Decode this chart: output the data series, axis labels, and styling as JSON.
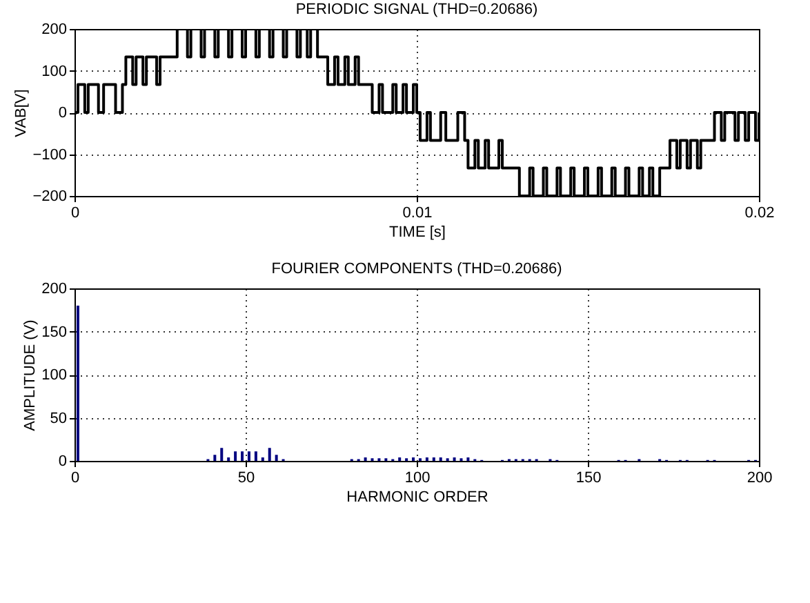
{
  "chart_data": [
    {
      "type": "step",
      "title": "PERIODIC SIGNAL (THD=0.20686)",
      "xlabel": "TIME [s]",
      "ylabel": "VAB[V]",
      "xlim": [
        0,
        0.02
      ],
      "xticks": [
        0,
        0.01,
        0.02
      ],
      "ylim": [
        -200,
        200
      ],
      "yticks": [
        -200,
        -100,
        0,
        100,
        200
      ],
      "grid": true,
      "color": "#000000",
      "x": [
        0,
        0.0001,
        0.0003,
        0.0004,
        0.0007,
        0.00085,
        0.0012,
        0.0014,
        0.0015,
        0.0017,
        0.0018,
        0.002,
        0.0021,
        0.0024,
        0.0025,
        0.003,
        0.0033,
        0.0034,
        0.0037,
        0.0038,
        0.0041,
        0.0042,
        0.0045,
        0.0046,
        0.0049,
        0.005,
        0.0053,
        0.0054,
        0.0057,
        0.0058,
        0.0061,
        0.0062,
        0.0065,
        0.0066,
        0.0068,
        0.0069,
        0.0071,
        0.0074,
        0.0076,
        0.0077,
        0.0079,
        0.008,
        0.0082,
        0.0083,
        0.0087,
        0.0089,
        0.009,
        0.0093,
        0.0094,
        0.0096,
        0.0097,
        0.0099,
        0.01,
        0.0101,
        0.0103,
        0.0104,
        0.0107,
        0.01085,
        0.0112,
        0.0114,
        0.0115,
        0.0117,
        0.0118,
        0.012,
        0.0121,
        0.0124,
        0.0125,
        0.013,
        0.0133,
        0.0134,
        0.0137,
        0.0138,
        0.0141,
        0.0142,
        0.0145,
        0.0146,
        0.0149,
        0.015,
        0.0153,
        0.0154,
        0.0157,
        0.0158,
        0.0161,
        0.0162,
        0.0165,
        0.0166,
        0.0168,
        0.0169,
        0.0171,
        0.0174,
        0.0176,
        0.0177,
        0.0179,
        0.018,
        0.0182,
        0.0183,
        0.0187,
        0.0189,
        0.019,
        0.0193,
        0.0194,
        0.0196,
        0.0197,
        0.0199,
        0.02
      ],
      "values": [
        0,
        67,
        0,
        67,
        0,
        67,
        0,
        67,
        133,
        67,
        133,
        67,
        133,
        67,
        133,
        200,
        133,
        200,
        133,
        200,
        133,
        200,
        133,
        200,
        133,
        200,
        133,
        200,
        133,
        200,
        133,
        200,
        133,
        200,
        133,
        200,
        133,
        67,
        133,
        67,
        133,
        67,
        133,
        67,
        0,
        67,
        0,
        67,
        0,
        67,
        0,
        67,
        0,
        -67,
        0,
        -67,
        0,
        -67,
        0,
        -67,
        -133,
        -67,
        -133,
        -67,
        -133,
        -67,
        -133,
        -200,
        -133,
        -200,
        -133,
        -200,
        -133,
        -200,
        -133,
        -200,
        -133,
        -200,
        -133,
        -200,
        -133,
        -200,
        -133,
        -200,
        -133,
        -200,
        -133,
        -200,
        -133,
        -67,
        -133,
        -67,
        -133,
        -67,
        -133,
        -67,
        0,
        -67,
        0,
        -67,
        0,
        -67,
        0,
        -67,
        0
      ]
    },
    {
      "type": "bar",
      "title": "FOURIER COMPONENTS  (THD=0.20686)",
      "xlabel": "HARMONIC ORDER",
      "ylabel": "AMPLITUDE (V)",
      "xlim": [
        0,
        200
      ],
      "xticks": [
        0,
        50,
        100,
        150,
        200
      ],
      "ylim": [
        0,
        200
      ],
      "yticks": [
        0,
        50,
        100,
        150,
        200
      ],
      "grid": true,
      "color": "#000080",
      "x": [
        1,
        39,
        41,
        43,
        45,
        47,
        49,
        51,
        53,
        55,
        57,
        59,
        61,
        81,
        83,
        85,
        87,
        89,
        91,
        93,
        95,
        97,
        99,
        101,
        103,
        105,
        107,
        109,
        111,
        113,
        115,
        117,
        119,
        125,
        127,
        129,
        131,
        133,
        135,
        139,
        141,
        159,
        161,
        165,
        171,
        173,
        177,
        179,
        185,
        187,
        197,
        199
      ],
      "values": [
        180,
        2,
        7,
        15,
        4,
        11,
        11,
        11,
        11,
        4,
        15,
        7,
        2,
        2,
        2,
        4,
        3,
        3,
        3,
        2,
        4,
        3,
        4,
        3,
        4,
        4,
        4,
        3,
        4,
        3,
        4,
        2,
        1,
        1,
        2,
        2,
        2,
        2,
        2,
        2,
        1,
        1,
        1,
        2,
        2,
        1,
        1,
        1,
        1,
        1,
        1,
        1
      ]
    }
  ]
}
